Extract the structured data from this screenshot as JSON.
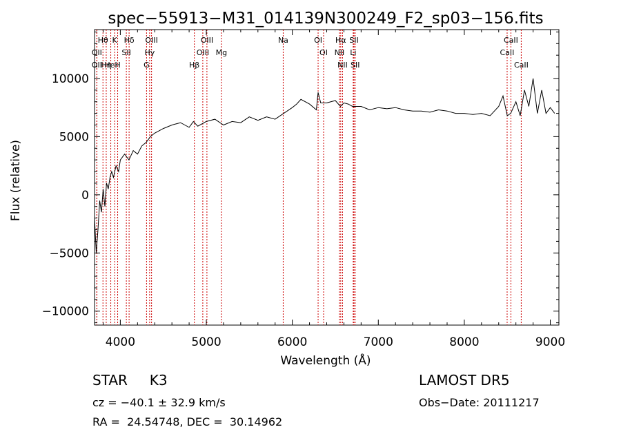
{
  "chart_data": {
    "type": "line",
    "title": "spec−55913−M31_014139N300249_F2_sp03−156.fits",
    "xlabel": "Wavelength (Å)",
    "ylabel": "Flux (relative)",
    "xlim": [
      3700,
      9100
    ],
    "ylim": [
      -11200,
      14200
    ],
    "xticks": [
      4000,
      5000,
      6000,
      7000,
      8000,
      9000
    ],
    "yticks": [
      -10000,
      -5000,
      0,
      5000,
      10000
    ],
    "xtick_labels": [
      "4000",
      "5000",
      "6000",
      "7000",
      "8000",
      "9000"
    ],
    "ytick_labels": [
      "−10000",
      "−5000",
      "0",
      "5000",
      "10000"
    ],
    "grid": false,
    "series": [
      {
        "x": [
          3700,
          3720,
          3740,
          3760,
          3780,
          3800,
          3820,
          3840,
          3860,
          3880,
          3900,
          3920,
          3950,
          3980,
          4000,
          4050,
          4100,
          4150,
          4200,
          4250,
          4300,
          4350,
          4400,
          4450,
          4500,
          4600,
          4700,
          4800,
          4850,
          4900,
          5000,
          5100,
          5200,
          5300,
          5400,
          5500,
          5600,
          5700,
          5800,
          5900,
          6000,
          6050,
          6100,
          6200,
          6280,
          6300,
          6330,
          6400,
          6500,
          6560,
          6600,
          6650,
          6700,
          6800,
          6900,
          7000,
          7100,
          7200,
          7300,
          7400,
          7500,
          7600,
          7700,
          7800,
          7900,
          8000,
          8100,
          8200,
          8300,
          8400,
          8450,
          8500,
          8540,
          8600,
          8650,
          8700,
          8750,
          8800,
          8850,
          8900,
          8950,
          9000,
          9050
        ],
        "y": [
          -2000,
          -5000,
          -3000,
          -500,
          -1500,
          500,
          -1000,
          1000,
          500,
          1500,
          2000,
          1500,
          2500,
          2000,
          3000,
          3500,
          3000,
          3800,
          3500,
          4200,
          4500,
          5000,
          5300,
          5500,
          5700,
          6000,
          6200,
          5800,
          6300,
          5900,
          6300,
          6500,
          6000,
          6300,
          6200,
          6700,
          6400,
          6700,
          6500,
          7000,
          7500,
          7800,
          8200,
          7800,
          7300,
          8800,
          7900,
          7900,
          8100,
          7600,
          7900,
          7800,
          7600,
          7600,
          7300,
          7500,
          7400,
          7500,
          7300,
          7200,
          7200,
          7100,
          7300,
          7200,
          7000,
          7000,
          6900,
          7000,
          6800,
          7600,
          8500,
          6800,
          7000,
          8000,
          6800,
          9000,
          7600,
          10000,
          7000,
          9000,
          7000,
          7500,
          7000
        ]
      }
    ],
    "lines": [
      {
        "name": "Hθ",
        "x": 3798
      },
      {
        "name": "K",
        "x": 3934
      },
      {
        "name": "Hδ",
        "x": 4102
      },
      {
        "name": "OIII",
        "x": 4363
      },
      {
        "name": "OII",
        "x": 3727
      },
      {
        "name": "HeI",
        "x": 3889
      },
      {
        "name": "SII",
        "x": 4070
      },
      {
        "name": "Hγ",
        "x": 4341
      },
      {
        "name": "OII",
        "x": 3727
      },
      {
        "name": "Hη",
        "x": 3836
      },
      {
        "name": "H",
        "x": 3969
      },
      {
        "name": "G",
        "x": 4305
      },
      {
        "name": "OIII",
        "x": 5007
      },
      {
        "name": "OIII",
        "x": 4959
      },
      {
        "name": "Hβ",
        "x": 4861
      },
      {
        "name": "Mg",
        "x": 5175
      },
      {
        "name": "Na",
        "x": 5894
      },
      {
        "name": "OI",
        "x": 6300
      },
      {
        "name": "OI",
        "x": 6364
      },
      {
        "name": "Hα",
        "x": 6563
      },
      {
        "name": "NII",
        "x": 6548
      },
      {
        "name": "NII",
        "x": 6584
      },
      {
        "name": "SII",
        "x": 6717
      },
      {
        "name": "Li",
        "x": 6708
      },
      {
        "name": "SII",
        "x": 6731
      },
      {
        "name": "CaII",
        "x": 8542
      },
      {
        "name": "CaII",
        "x": 8498
      },
      {
        "name": "CaII",
        "x": 8662
      }
    ]
  },
  "info": {
    "class_label": "STAR     K3",
    "cz_label": "cz = −40.1 ± 32.9 km/s",
    "radec_label": "RA =  24.54748, DEC =  30.14962",
    "survey_label": "LAMOST DR5",
    "obsdate_label": "Obs−Date: 20111217"
  },
  "colors": {
    "spectrum": "#000000",
    "line_markers": "#cc0000"
  }
}
